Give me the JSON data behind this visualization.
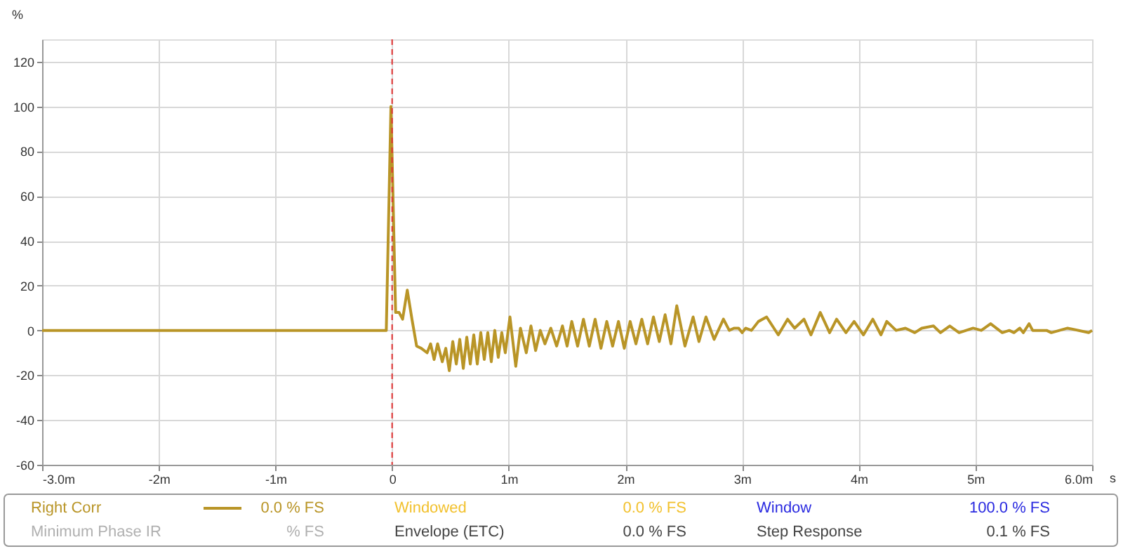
{
  "chart_data": {
    "type": "line",
    "xlabel": "s",
    "ylabel": "%",
    "xlim": [
      -3.0,
      6.0
    ],
    "ylim": [
      -60,
      130
    ],
    "xticks": [
      {
        "value": -3,
        "label": "-3.0m"
      },
      {
        "value": -2,
        "label": "-2m"
      },
      {
        "value": -1,
        "label": "-1m"
      },
      0,
      {
        "value": 1,
        "label": "1m"
      },
      {
        "value": 2,
        "label": "2m"
      },
      {
        "value": 3,
        "label": "3m"
      },
      {
        "value": 4,
        "label": "4m"
      },
      {
        "value": 5,
        "label": "5m"
      },
      {
        "value": 6,
        "label": "6.0m"
      }
    ],
    "yticks": [
      -60,
      -40,
      -20,
      0,
      20,
      40,
      60,
      80,
      100,
      120
    ],
    "grid": true,
    "legend": "bottom",
    "ref_lines": [
      {
        "axis": "x",
        "value": 0,
        "color": "#e03030",
        "line_style": "dashed"
      }
    ],
    "series": [
      {
        "name": "Right Corr",
        "color": "#b99527",
        "x": [
          -3.0,
          -0.05,
          -0.01,
          0.03,
          0.06,
          0.09,
          0.13,
          0.17,
          0.21,
          0.25,
          0.3,
          0.33,
          0.36,
          0.39,
          0.43,
          0.46,
          0.49,
          0.52,
          0.55,
          0.58,
          0.61,
          0.64,
          0.67,
          0.7,
          0.73,
          0.76,
          0.79,
          0.82,
          0.85,
          0.88,
          0.91,
          0.94,
          0.97,
          1.01,
          1.06,
          1.1,
          1.15,
          1.19,
          1.23,
          1.27,
          1.31,
          1.36,
          1.41,
          1.46,
          1.5,
          1.54,
          1.59,
          1.64,
          1.69,
          1.74,
          1.79,
          1.84,
          1.89,
          1.94,
          1.99,
          2.04,
          2.09,
          2.14,
          2.19,
          2.24,
          2.29,
          2.34,
          2.39,
          2.44,
          2.51,
          2.58,
          2.63,
          2.69,
          2.76,
          2.84,
          2.89,
          2.93,
          2.97,
          3.0,
          3.03,
          3.08,
          3.14,
          3.21,
          3.31,
          3.39,
          3.45,
          3.53,
          3.59,
          3.67,
          3.75,
          3.81,
          3.89,
          3.96,
          4.04,
          4.12,
          4.19,
          4.24,
          4.32,
          4.4,
          4.48,
          4.54,
          4.64,
          4.7,
          4.78,
          4.86,
          4.98,
          5.05,
          5.13,
          5.23,
          5.29,
          5.33,
          5.38,
          5.41,
          5.46,
          5.49,
          5.61,
          5.65,
          5.79,
          5.97,
          6.0
        ],
        "values": [
          0,
          0,
          100,
          8,
          8,
          5,
          18,
          5,
          -7,
          -8,
          -10,
          -6,
          -13,
          -6,
          -14,
          -8,
          -18,
          -5,
          -15,
          -4,
          -17,
          -3,
          -15,
          -2,
          -15,
          -1,
          -13,
          -1,
          -14,
          0,
          -12,
          -1,
          -10,
          6,
          -16,
          1,
          -10,
          2,
          -9,
          0,
          -6,
          1,
          -7,
          2,
          -7,
          4,
          -7,
          5,
          -7,
          5,
          -8,
          4,
          -7,
          4,
          -8,
          4,
          -6,
          5,
          -6,
          6,
          -5,
          7,
          -6,
          11,
          -7,
          6,
          -5,
          6,
          -4,
          5,
          0,
          1,
          1,
          -1,
          1,
          0,
          4,
          6,
          -2,
          5,
          1,
          5,
          -2,
          8,
          -1,
          5,
          -1,
          4,
          -2,
          5,
          -2,
          4,
          0,
          1,
          -1,
          1,
          2,
          -1,
          2,
          -1,
          1,
          0,
          3,
          -1,
          0,
          -1,
          1,
          -1,
          3,
          0,
          0,
          -1,
          1,
          -1,
          0
        ]
      }
    ],
    "annotations": [
      "0.0 % FS",
      "Windowed",
      "0.0 % FS",
      "Window",
      "100.0 % FS",
      "Minimum Phase IR",
      "% FS",
      "Envelope (ETC)",
      "0.0 % FS",
      "Step Response",
      "0.1 % FS"
    ]
  }
}
